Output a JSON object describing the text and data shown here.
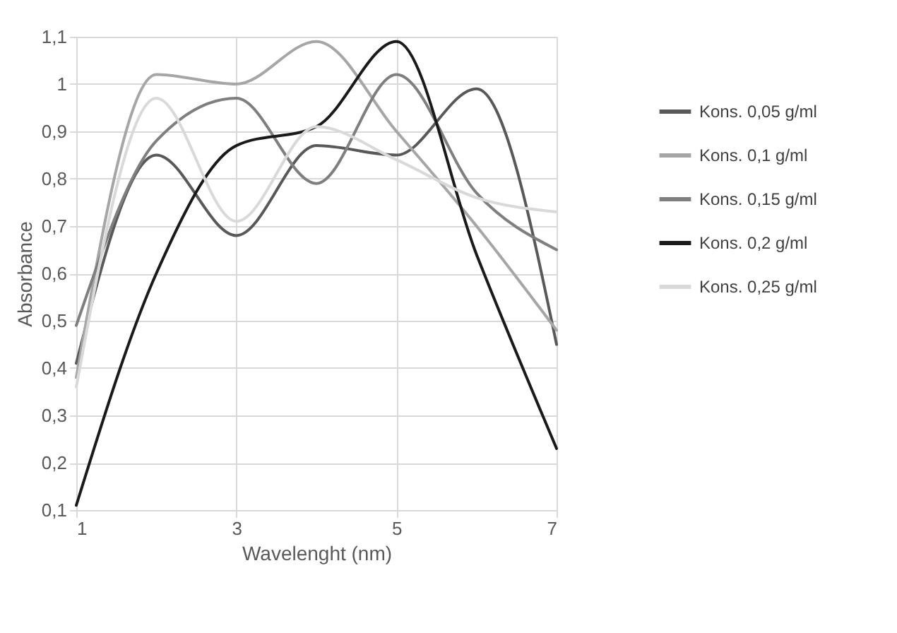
{
  "chart_data": {
    "type": "line",
    "xlabel": "Wavelenght (nm)",
    "ylabel": "Absorbance",
    "x": [
      1,
      2,
      3,
      4,
      5,
      6,
      7
    ],
    "series": [
      {
        "name": "Kons. 0,05 g/ml",
        "color": "#595959",
        "values": [
          0.41,
          0.85,
          0.68,
          0.87,
          0.85,
          0.99,
          0.45
        ]
      },
      {
        "name": "Kons. 0,1 g/ml",
        "color": "#a6a6a6",
        "values": [
          0.38,
          1.02,
          1.0,
          1.09,
          0.9,
          0.7,
          0.48
        ]
      },
      {
        "name": "Kons. 0,15 g/ml",
        "color": "#7f7f7f",
        "values": [
          0.49,
          0.88,
          0.97,
          0.79,
          1.02,
          0.77,
          0.65
        ]
      },
      {
        "name": "Kons. 0,2 g/ml",
        "color": "#1a1a1a",
        "values": [
          0.11,
          0.6,
          0.87,
          0.91,
          1.09,
          0.64,
          0.23
        ]
      },
      {
        "name": "Kons. 0,25 g/ml",
        "color": "#d9d9d9",
        "values": [
          0.36,
          0.97,
          0.71,
          0.91,
          0.84,
          0.76,
          0.73
        ]
      }
    ],
    "xlim": [
      1,
      7
    ],
    "xticks": [
      1,
      3,
      5,
      7
    ],
    "ylim": [
      0.1,
      1.1
    ],
    "yticks": [
      {
        "value": 0.1,
        "label": "0,1"
      },
      {
        "value": 0.2,
        "label": "0,2"
      },
      {
        "value": 0.3,
        "label": "0,3"
      },
      {
        "value": 0.4,
        "label": "0,4"
      },
      {
        "value": 0.5,
        "label": "0,5"
      },
      {
        "value": 0.6,
        "label": "0,6"
      },
      {
        "value": 0.7,
        "label": "0,7"
      },
      {
        "value": 0.8,
        "label": "0,8"
      },
      {
        "value": 0.9,
        "label": "0,9"
      },
      {
        "value": 1,
        "label": "1"
      },
      {
        "value": 1.1,
        "label": "1,1"
      }
    ],
    "grid": true,
    "legend": "right",
    "marker": "none",
    "line_style": "solid"
  }
}
